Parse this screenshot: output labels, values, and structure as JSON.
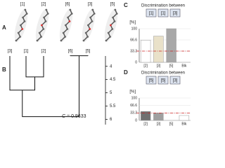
{
  "panels": {
    "a": "A",
    "b": "B",
    "c": "C",
    "d": "D"
  },
  "molecules": {
    "labels": [
      "[1]",
      "[2]",
      "[6]",
      "[3]",
      "[5]"
    ]
  },
  "dendrogram": {
    "leaves": [
      "[3]",
      "[1]",
      "[2]",
      "[6]",
      "[5]"
    ],
    "ylim": [
      3.4,
      6.2
    ],
    "yticks": [
      4,
      4.5,
      5,
      5.5,
      6
    ],
    "merge_heights": [
      4.4,
      4.9,
      3.6,
      5.9
    ],
    "annotation": {
      "symbol": "C",
      "text": "= 0.9633"
    }
  },
  "chart_data": [
    {
      "type": "bar",
      "title": "Discrimination between",
      "header": [
        "[1]",
        "[1]",
        "[3]"
      ],
      "ylabel": "[%]",
      "categories": [
        "[2]",
        "[3]",
        "[5]",
        "Blk"
      ],
      "values": [
        66,
        78,
        100,
        0
      ],
      "colors": [
        "#ffffff",
        "#e9e1c9",
        "#a8a8a8",
        "#ffffff"
      ],
      "ylim": [
        0,
        100
      ],
      "yticks": [
        0,
        33.3,
        66.6,
        100
      ],
      "hline": 33.3,
      "hline_color": "#cc2222"
    },
    {
      "type": "bar",
      "title": "Discrimination between",
      "header": [
        "[5]",
        "[5]",
        "[3]"
      ],
      "ylabel": "[%]",
      "categories": [
        "[2]",
        "[3]",
        "[5]",
        "Blk"
      ],
      "values": [
        40,
        33,
        0,
        22
      ],
      "colors": [
        "#707070",
        "#a0a0a0",
        "#ffffff",
        "#ffffff"
      ],
      "ylim": [
        0,
        100
      ],
      "yticks": [
        0,
        33.3,
        66.6,
        100
      ],
      "hline": 33.3,
      "hline_color": "#cc2222"
    }
  ]
}
